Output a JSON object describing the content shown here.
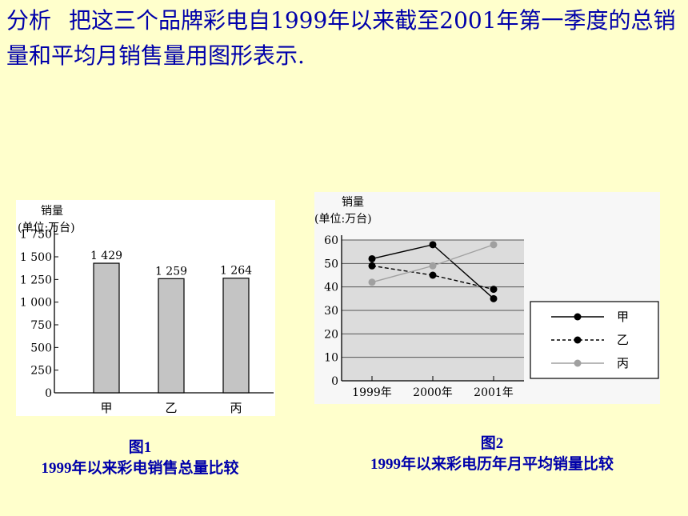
{
  "heading": {
    "lead": "分析",
    "text": "把这三个品牌彩电自1999年以来截至2001年第一季度的总销量和平均月销售量用图形表示."
  },
  "chart_data": [
    {
      "type": "bar",
      "ylabel_line1": "销量",
      "ylabel_line2": "(单位:万台)",
      "categories": [
        "甲",
        "乙",
        "丙"
      ],
      "values": [
        1429,
        1259,
        1264
      ],
      "value_labels": [
        "1 429",
        "1 259",
        "1 264"
      ],
      "yticks": [
        0,
        250,
        500,
        750,
        1000,
        1250,
        1500,
        1750
      ],
      "ytick_labels": [
        "0",
        "250",
        "500",
        "750",
        "1 000",
        "1 250",
        "1 500",
        "1 750"
      ],
      "ylim": [
        0,
        1800
      ],
      "bar_color": "#c4c4c4",
      "caption_title": "图1",
      "caption_subtitle": "1999年以来彩电销售总量比较"
    },
    {
      "type": "line",
      "ylabel_line1": "销量",
      "ylabel_line2": "(单位:万台)",
      "x": [
        "1999年",
        "2000年",
        "2001年"
      ],
      "yticks": [
        0,
        10,
        20,
        30,
        40,
        50,
        60
      ],
      "ylim": [
        0,
        60
      ],
      "grid": true,
      "legend_position": "right",
      "series": [
        {
          "name": "甲",
          "values": [
            52,
            58,
            35
          ],
          "color": "#000000",
          "dash": false
        },
        {
          "name": "乙",
          "values": [
            49,
            45,
            39
          ],
          "color": "#000000",
          "dash": true
        },
        {
          "name": "丙",
          "values": [
            42,
            49,
            58
          ],
          "color": "#a0a0a0",
          "dash": false
        }
      ],
      "caption_title": "图2",
      "caption_subtitle": "1999年以来彩电历年月平均销量比较"
    }
  ]
}
